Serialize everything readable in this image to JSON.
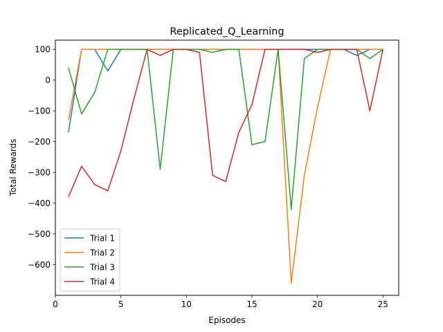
{
  "chart_data": {
    "type": "line",
    "title": "Replicated_Q_Learning",
    "xlabel": "Episodes",
    "ylabel": "Total Rewards",
    "xlim": [
      0,
      26.2
    ],
    "ylim": [
      -700,
      130
    ],
    "xticks": [
      0,
      5,
      10,
      15,
      20,
      25
    ],
    "yticks": [
      -600,
      -500,
      -400,
      -300,
      -200,
      -100,
      0,
      100
    ],
    "yticks_labels": [
      "−600",
      "−500",
      "−400",
      "−300",
      "−200",
      "−100",
      "0",
      "100"
    ],
    "grid": false,
    "legend_position": "lower-left",
    "x": [
      1,
      2,
      3,
      4,
      5,
      6,
      7,
      8,
      9,
      10,
      11,
      12,
      13,
      14,
      15,
      16,
      17,
      18,
      19,
      20,
      21,
      22,
      23,
      24,
      25
    ],
    "series": [
      {
        "name": "Trial 1",
        "color": "#1f77b4",
        "values": [
          -170,
          100,
          100,
          30,
          100,
          100,
          100,
          100,
          100,
          100,
          100,
          100,
          100,
          100,
          100,
          100,
          100,
          100,
          100,
          100,
          100,
          100,
          80,
          100,
          100
        ]
      },
      {
        "name": "Trial 2",
        "color": "#ff7f0e",
        "values": [
          -130,
          100,
          100,
          100,
          100,
          100,
          100,
          100,
          100,
          100,
          100,
          100,
          100,
          100,
          100,
          100,
          100,
          -660,
          -310,
          -90,
          100,
          100,
          100,
          100,
          100
        ]
      },
      {
        "name": "Trial 3",
        "color": "#2ca02c",
        "values": [
          40,
          -110,
          -40,
          100,
          100,
          100,
          100,
          -290,
          100,
          100,
          100,
          90,
          100,
          100,
          -210,
          -200,
          100,
          -420,
          70,
          100,
          100,
          100,
          100,
          70,
          100
        ]
      },
      {
        "name": "Trial 4",
        "color": "#d62728",
        "values": [
          -380,
          -280,
          -340,
          -360,
          -230,
          -60,
          100,
          80,
          100,
          100,
          90,
          -310,
          -330,
          -170,
          -80,
          100,
          100,
          100,
          100,
          90,
          100,
          100,
          100,
          -100,
          100
        ]
      }
    ]
  }
}
